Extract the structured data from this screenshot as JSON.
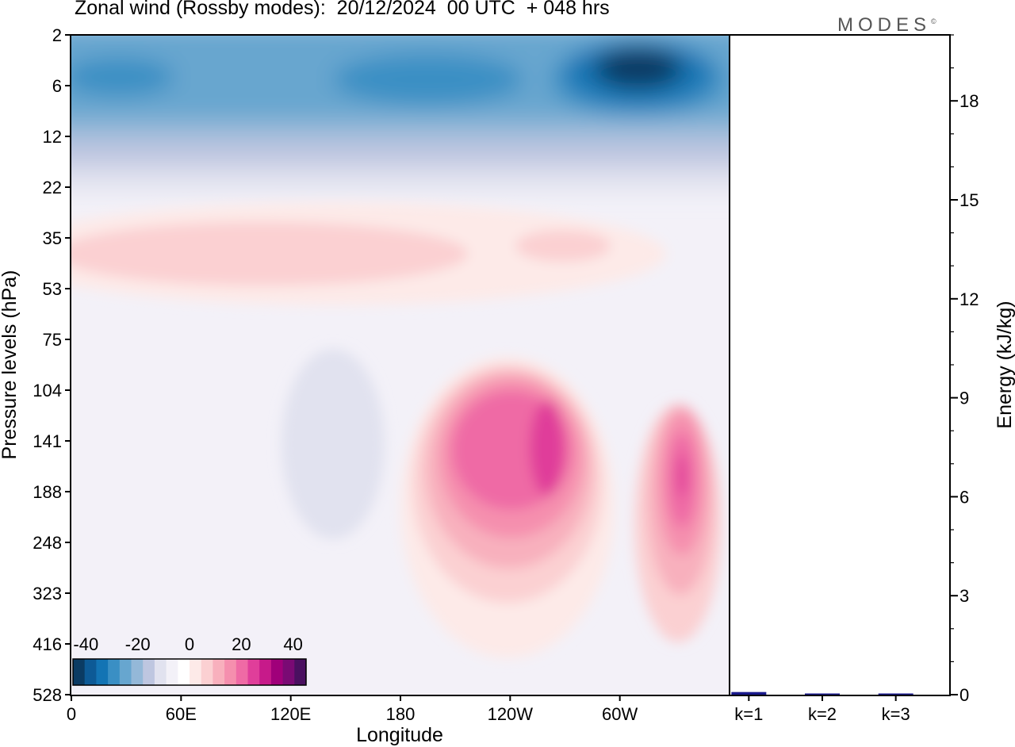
{
  "header": {
    "title": "Zonal wind (Rossby modes):  20/12/2024  00 UTC  + 048 hrs",
    "logo": "MODES"
  },
  "chart_data": [
    {
      "type": "heatmap",
      "title": "Zonal wind (Rossby modes):  20/12/2024  00 UTC  + 048 hrs",
      "xlabel": "Longitude",
      "ylabel": "Pressure levels (hPa)",
      "x_ticks": [
        {
          "lon": 0,
          "label": "0"
        },
        {
          "lon": 60,
          "label": "60E"
        },
        {
          "lon": 120,
          "label": "120E"
        },
        {
          "lon": 180,
          "label": "180"
        },
        {
          "lon": 240,
          "label": "120W"
        },
        {
          "lon": 300,
          "label": "60W"
        }
      ],
      "xlim": [
        0,
        360
      ],
      "pressure_levels": [
        "2",
        "6",
        "12",
        "22",
        "35",
        "53",
        "75",
        "104",
        "141",
        "188",
        "248",
        "323",
        "416",
        "528"
      ],
      "colorbar": {
        "labels": [
          "-40",
          "-20",
          "0",
          "20",
          "40"
        ],
        "range": [
          -45,
          45
        ],
        "colors": [
          "#0b3b63",
          "#0d5a96",
          "#1374b4",
          "#3a8fc4",
          "#67a6cf",
          "#94b8d8",
          "#bec6e0",
          "#e1e2ef",
          "#f3f1f8",
          "#ffffff",
          "#fdeae8",
          "#fbd0d2",
          "#f8b0bd",
          "#f58fae",
          "#ef6aa5",
          "#e03e9a",
          "#c71a8a",
          "#a0007a",
          "#7a0a74",
          "#4a1060"
        ]
      },
      "features": [
        {
          "kind": "easterly_band",
          "pressure_hPa": [
            2,
            16
          ],
          "lon": [
            0,
            360
          ],
          "u_ms": -25
        },
        {
          "kind": "easterly_max",
          "pressure_hPa": 4,
          "lon": 300,
          "u_ms": -40
        },
        {
          "kind": "westerly_jet",
          "pressure_hPa": 141,
          "lon": 258,
          "u_ms": 37
        },
        {
          "kind": "westerly_jet",
          "pressure_hPa": 188,
          "lon": 333,
          "u_ms": 38
        }
      ]
    },
    {
      "type": "bar",
      "ylabel": "Energy (kJ/kg)",
      "categories": [
        "k=1",
        "k=2",
        "k=3"
      ],
      "values": [
        0.08,
        0.03,
        0.02
      ],
      "ylim": [
        0,
        20
      ],
      "y_ticks": [
        "0",
        "3",
        "6",
        "9",
        "12",
        "15",
        "18"
      ],
      "bar_color": "#1a1a8c"
    }
  ]
}
